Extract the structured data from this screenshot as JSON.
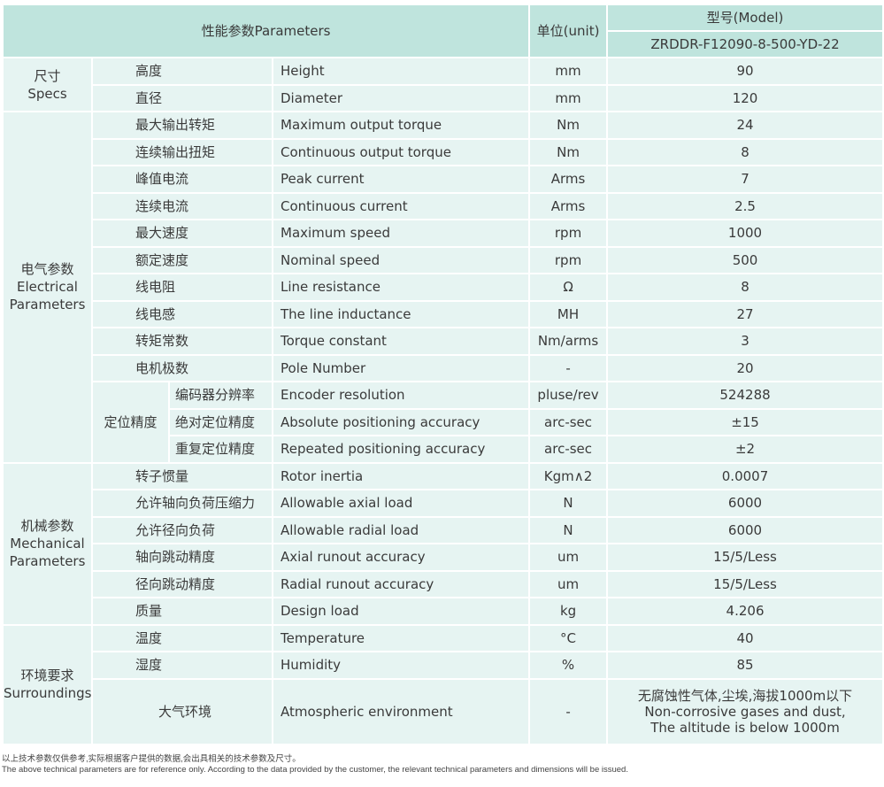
{
  "header": {
    "parameters": "性能参数Parameters",
    "unit": "单位(unit)",
    "model_label": "型号(Model)",
    "model": "ZRDDR-F12090-8-500-YD-22"
  },
  "groups": [
    {
      "cn": "尺寸",
      "en": "Specs",
      "rows": [
        {
          "cn": "高度",
          "en": "Height",
          "unit": "mm",
          "value": "90"
        },
        {
          "cn": "直径",
          "en": "Diameter",
          "unit": "mm",
          "value": "120"
        }
      ]
    },
    {
      "cn": "电气参数",
      "en": "Electrical Parameters",
      "rows": [
        {
          "cn": "最大输出转矩",
          "en": "Maximum output torque",
          "unit": "Nm",
          "value": "24"
        },
        {
          "cn": "连续输出扭矩",
          "en": "Continuous output torque",
          "unit": "Nm",
          "value": "8"
        },
        {
          "cn": "峰值电流",
          "en": "Peak current",
          "unit": "Arms",
          "value": "7"
        },
        {
          "cn": "连续电流",
          "en": "Continuous current",
          "unit": "Arms",
          "value": "2.5"
        },
        {
          "cn": "最大速度",
          "en": "Maximum speed",
          "unit": "rpm",
          "value": "1000"
        },
        {
          "cn": "额定速度",
          "en": "Nominal speed",
          "unit": "rpm",
          "value": "500"
        },
        {
          "cn": "线电阻",
          "en": "Line resistance",
          "unit": "Ω",
          "value": "8"
        },
        {
          "cn": "线电感",
          "en": "The line inductance",
          "unit": "MH",
          "value": "27"
        },
        {
          "cn": "转矩常数",
          "en": "Torque constant",
          "unit": "Nm/arms",
          "value": "3"
        },
        {
          "cn": "电机极数",
          "en": "Pole Number",
          "unit": "-",
          "value": "20"
        },
        {
          "sub": "定位精度",
          "cn": "编码器分辨率",
          "en": "Encoder resolution",
          "unit": "pluse/rev",
          "value": "524288"
        },
        {
          "sub": "定位精度",
          "cn": "绝对定位精度",
          "en": "Absolute positioning accuracy",
          "unit": "arc-sec",
          "value": "±15"
        },
        {
          "sub": "定位精度",
          "cn": "重复定位精度",
          "en": "Repeated positioning accuracy",
          "unit": "arc-sec",
          "value": "±2"
        }
      ]
    },
    {
      "cn": "机械参数",
      "en": "Mechanical Parameters",
      "rows": [
        {
          "cn": "转子惯量",
          "en": "Rotor inertia",
          "unit": "Kgm∧2",
          "value": "0.0007"
        },
        {
          "cn": "允许轴向负荷压缩力",
          "en": "Allowable axial load",
          "unit": "N",
          "value": "6000"
        },
        {
          "cn": "允许径向负荷",
          "en": "Allowable radial load",
          "unit": "N",
          "value": "6000"
        },
        {
          "cn": "轴向跳动精度",
          "en": "Axial runout accuracy",
          "unit": "um",
          "value": "15/5/Less"
        },
        {
          "cn": "径向跳动精度",
          "en": "Radial runout accuracy",
          "unit": "um",
          "value": "15/5/Less"
        },
        {
          "cn": "质量",
          "en": "Design load",
          "unit": "kg",
          "value": "4.206"
        }
      ]
    },
    {
      "cn": "环境要求",
      "en": "Surroundings",
      "rows": [
        {
          "cn": "温度",
          "en": "Temperature",
          "unit": "°C",
          "value": "40"
        },
        {
          "cn": "湿度",
          "en": "Humidity",
          "unit": "%",
          "value": "85"
        },
        {
          "cn": "大气环境",
          "en": "Atmospheric environment",
          "unit": "-",
          "value": "无腐蚀性气体,尘埃,海拔1000m以下\nNon-corrosive gases and dust,\nThe altitude is below 1000m",
          "tall": true
        }
      ]
    }
  ],
  "notes": {
    "cn": "以上技术参数仅供参考,实际根据客户提供的数据,会出具相关的技术参数及尺寸。",
    "en": "The above technical parameters are for reference only. According to the data provided by the customer, the relevant technical parameters and dimensions will be issued."
  }
}
